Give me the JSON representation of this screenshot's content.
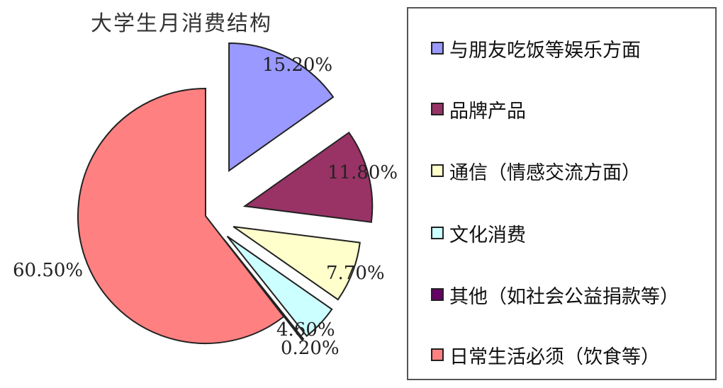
{
  "chart_data": {
    "type": "pie",
    "title": "大学生月消费结构",
    "legend_position": "right",
    "slices": [
      {
        "label": "与朋友吃饭等娱乐方面",
        "value": 15.2,
        "display": "15.20%",
        "color": "#9999ff"
      },
      {
        "label": "品牌产品",
        "value": 11.8,
        "display": "11.80%",
        "color": "#993366"
      },
      {
        "label": "通信（情感交流方面）",
        "value": 7.7,
        "display": "7.70%",
        "color": "#ffffcc"
      },
      {
        "label": "文化消费",
        "value": 4.6,
        "display": "4.60%",
        "color": "#ccffff"
      },
      {
        "label": "其他（如社会公益捐款等）",
        "value": 0.2,
        "display": "0.20%",
        "color": "#660066"
      },
      {
        "label": "日常生活必须（饮食等）",
        "value": 60.5,
        "display": "60.50%",
        "color": "#ff8080"
      }
    ]
  }
}
